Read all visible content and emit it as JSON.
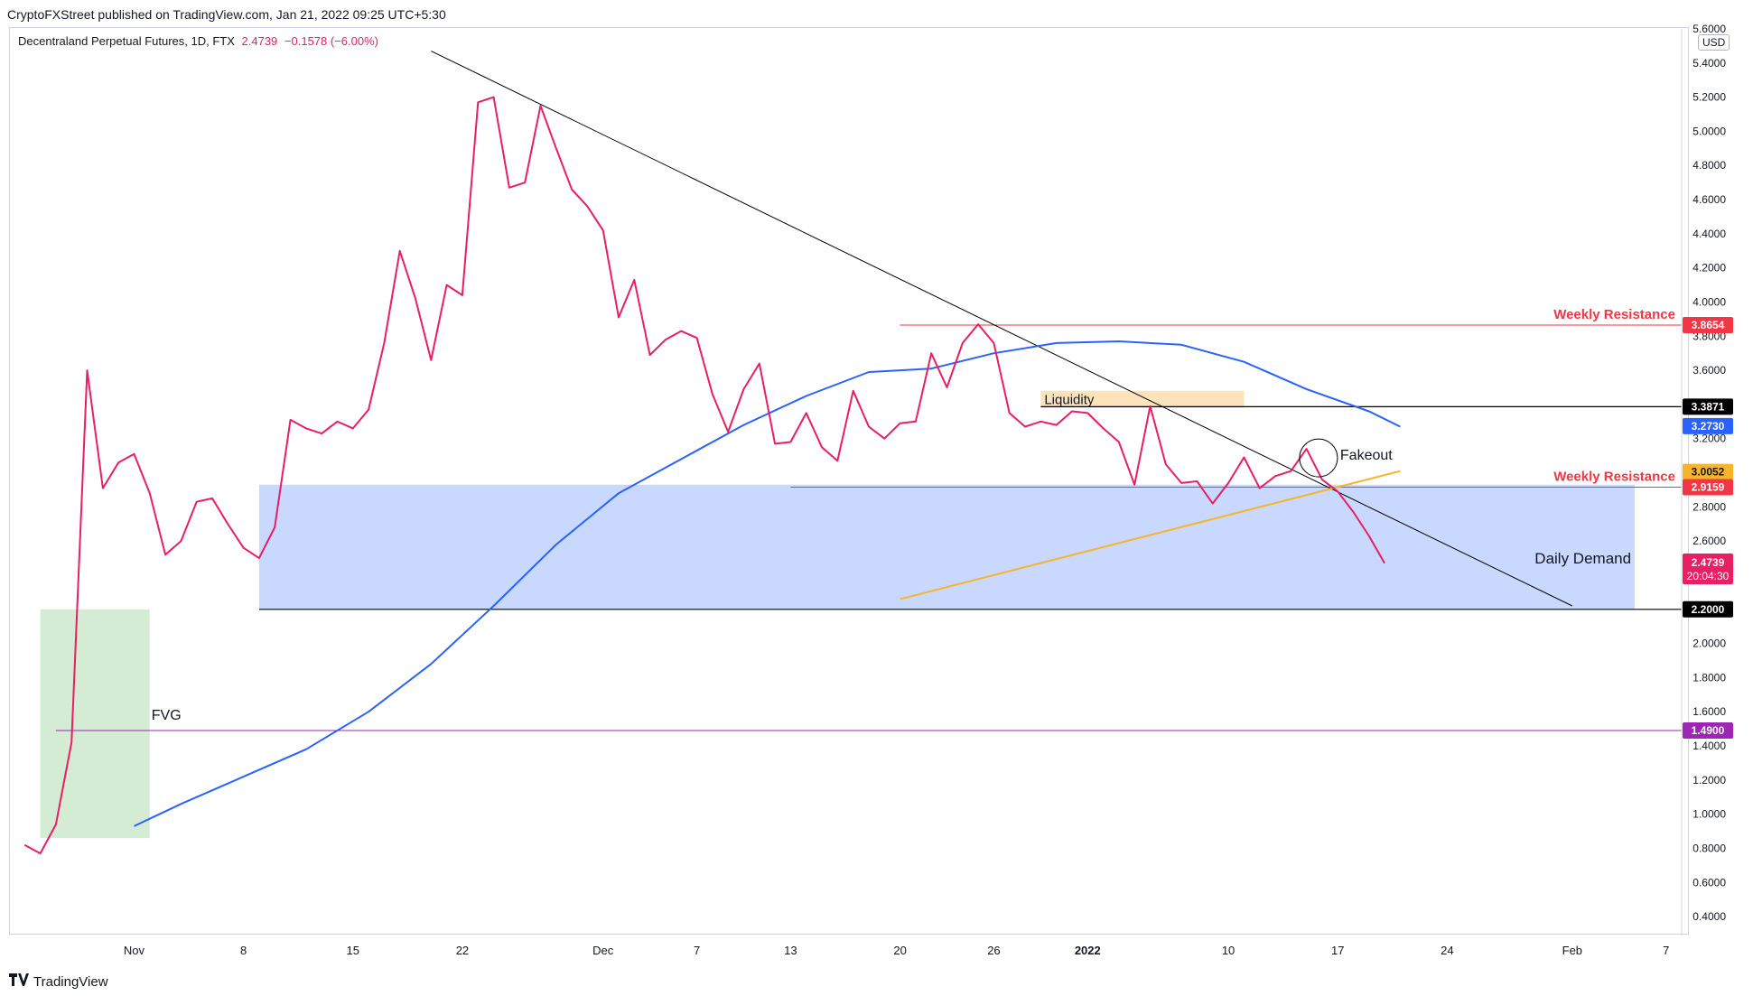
{
  "header": {
    "published": "CryptoFXStreet published on TradingView.com, Jan 21, 2022 09:25 UTC+5:30"
  },
  "legend": {
    "symbol": "Decentraland Perpetual Futures, 1D, FTX",
    "price": "2.4739",
    "change": "−0.1578 (−6.00%)"
  },
  "footer": {
    "brand": "TradingView",
    "logo_icon": "tradingview-logo-icon"
  },
  "currency": "USD",
  "colors": {
    "price": "#e91e63",
    "ma": "#2962ff",
    "trend": "#000000",
    "rising": "#f7b52c",
    "resistance": "#f23645",
    "fvg": "#9c27b0",
    "demand": "#c9d8ff",
    "fvg_zone": "#d4ebd4",
    "liquidity": "#fde3b9"
  },
  "chart_data": {
    "type": "line",
    "title": "Decentraland Perpetual Futures, 1D, FTX",
    "x_axis_labels": [
      "Nov",
      "8",
      "15",
      "22",
      "Dec",
      "7",
      "13",
      "20",
      "26",
      "2022",
      "10",
      "17",
      "24",
      "Feb",
      "7"
    ],
    "x_range": [
      "2021-10-24",
      "2022-02-08"
    ],
    "y_range": [
      0.3,
      5.6
    ],
    "y_ticks": [
      "0.4000",
      "0.6000",
      "0.8000",
      "1.0000",
      "1.2000",
      "1.4000",
      "1.6000",
      "1.8000",
      "2.0000",
      "2.2000",
      "2.4000",
      "2.6000",
      "2.8000",
      "3.0000",
      "3.2000",
      "3.4000",
      "3.6000",
      "3.8000",
      "4.0000",
      "4.2000",
      "4.4000",
      "4.6000",
      "4.8000",
      "5.0000",
      "5.2000",
      "5.4000",
      "5.6000"
    ],
    "series": [
      {
        "name": "price",
        "x": [
          "2021-10-25",
          "2021-10-26",
          "2021-10-27",
          "2021-10-28",
          "2021-10-29",
          "2021-10-30",
          "2021-10-31",
          "2021-11-01",
          "2021-11-02",
          "2021-11-03",
          "2021-11-04",
          "2021-11-05",
          "2021-11-06",
          "2021-11-07",
          "2021-11-08",
          "2021-11-09",
          "2021-11-10",
          "2021-11-11",
          "2021-11-12",
          "2021-11-13",
          "2021-11-14",
          "2021-11-15",
          "2021-11-16",
          "2021-11-17",
          "2021-11-18",
          "2021-11-19",
          "2021-11-20",
          "2021-11-21",
          "2021-11-22",
          "2021-11-23",
          "2021-11-24",
          "2021-11-25",
          "2021-11-26",
          "2021-11-27",
          "2021-11-28",
          "2021-11-29",
          "2021-11-30",
          "2021-12-01",
          "2021-12-02",
          "2021-12-03",
          "2021-12-04",
          "2021-12-05",
          "2021-12-06",
          "2021-12-07",
          "2021-12-08",
          "2021-12-09",
          "2021-12-10",
          "2021-12-11",
          "2021-12-12",
          "2021-12-13",
          "2021-12-14",
          "2021-12-15",
          "2021-12-16",
          "2021-12-17",
          "2021-12-18",
          "2021-12-19",
          "2021-12-20",
          "2021-12-21",
          "2021-12-22",
          "2021-12-23",
          "2021-12-24",
          "2021-12-25",
          "2021-12-26",
          "2021-12-27",
          "2021-12-28",
          "2021-12-29",
          "2021-12-30",
          "2021-12-31",
          "2022-01-01",
          "2022-01-02",
          "2022-01-03",
          "2022-01-04",
          "2022-01-05",
          "2022-01-06",
          "2022-01-07",
          "2022-01-08",
          "2022-01-09",
          "2022-01-10",
          "2022-01-11",
          "2022-01-12",
          "2022-01-13",
          "2022-01-14",
          "2022-01-15",
          "2022-01-16",
          "2022-01-17",
          "2022-01-18",
          "2022-01-19",
          "2022-01-20",
          "2022-01-21"
        ],
        "y": [
          0.82,
          0.77,
          0.94,
          1.42,
          3.6,
          2.91,
          3.06,
          3.11,
          2.88,
          2.52,
          2.6,
          2.83,
          2.85,
          2.7,
          2.56,
          2.5,
          2.68,
          3.31,
          3.26,
          3.23,
          3.3,
          3.26,
          3.37,
          3.76,
          4.3,
          4.02,
          3.66,
          4.1,
          4.04,
          5.17,
          5.2,
          4.67,
          4.7,
          5.15,
          4.9,
          4.66,
          4.56,
          4.42,
          3.91,
          4.13,
          3.69,
          3.78,
          3.83,
          3.79,
          3.46,
          3.24,
          3.49,
          3.64,
          3.17,
          3.18,
          3.35,
          3.15,
          3.07,
          3.48,
          3.27,
          3.2,
          3.29,
          3.3,
          3.7,
          3.5,
          3.76,
          3.87,
          3.76,
          3.35,
          3.27,
          3.3,
          3.28,
          3.36,
          3.35,
          3.26,
          3.18,
          2.93,
          3.39,
          3.05,
          2.94,
          2.95,
          2.82,
          2.94,
          3.09,
          2.91,
          2.98,
          3.01,
          3.14,
          2.96,
          2.89,
          2.77,
          2.63,
          2.47,
          null
        ]
      },
      {
        "name": "ma",
        "x": [
          "2021-11-01",
          "2021-11-04",
          "2021-11-08",
          "2021-11-12",
          "2021-11-16",
          "2021-11-20",
          "2021-11-24",
          "2021-11-28",
          "2021-12-02",
          "2021-12-06",
          "2021-12-10",
          "2021-12-14",
          "2021-12-18",
          "2021-12-22",
          "2021-12-26",
          "2021-12-30",
          "2022-01-03",
          "2022-01-07",
          "2022-01-11",
          "2022-01-15",
          "2022-01-19",
          "2022-01-21"
        ],
        "y": [
          0.93,
          1.06,
          1.22,
          1.38,
          1.6,
          1.88,
          2.22,
          2.58,
          2.88,
          3.08,
          3.28,
          3.45,
          3.59,
          3.61,
          3.7,
          3.76,
          3.77,
          3.75,
          3.65,
          3.49,
          3.36,
          3.27
        ]
      }
    ],
    "lines": {
      "downtrend": {
        "start": [
          "2021-11-20",
          5.47
        ],
        "end": [
          "2022-02-01",
          2.22
        ]
      },
      "rising_trend": {
        "start": [
          "2021-12-20",
          2.26
        ],
        "end": [
          "2022-01-21",
          3.01
        ]
      },
      "weekly_resistance_upper": 3.8654,
      "weekly_resistance_lower": 2.9159,
      "liquidity_level": 3.3871,
      "daily_demand_floor": 2.2,
      "fvg_level": 1.49
    },
    "price_labels": [
      "3.8654",
      "3.3871",
      "3.2730",
      "3.0052",
      "2.9159",
      "2.4739",
      "20:04:30",
      "2.2000",
      "1.4900"
    ],
    "annotations": {
      "weekly_resistance_upper": "Weekly Resistance",
      "weekly_resistance_lower": "Weekly Resistance",
      "liquidity": "Liquidity",
      "fakeout": "Fakeout",
      "daily_demand": "Daily Demand",
      "fvg": "FVG"
    },
    "zones": {
      "demand": {
        "x": [
          "2021-11-09",
          "2022-02-05"
        ],
        "y": [
          2.2,
          2.93
        ]
      },
      "fvg": {
        "x": [
          "2021-10-26",
          "2021-11-02"
        ],
        "y": [
          0.86,
          2.2
        ]
      },
      "liquidity": {
        "x": [
          "2021-12-29",
          "2022-01-11"
        ],
        "y": [
          3.38,
          3.48
        ]
      }
    }
  }
}
